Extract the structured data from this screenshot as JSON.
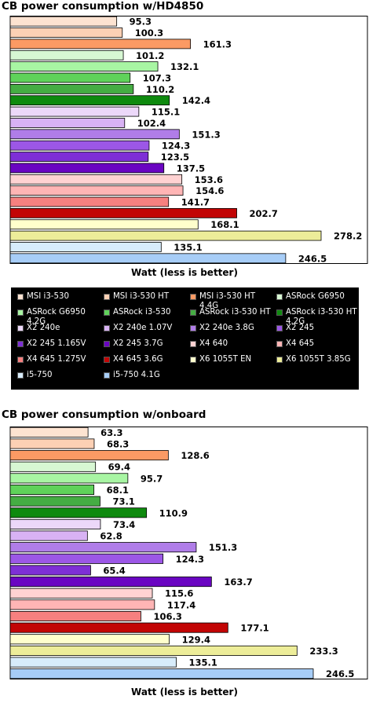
{
  "colors": [
    "#fde3d1",
    "#fcd0b4",
    "#fb9a64",
    "#d7f7d3",
    "#a8f5a3",
    "#5fd25a",
    "#45ad43",
    "#0e8a0e",
    "#ecd8f9",
    "#d8b2f4",
    "#b07de8",
    "#9c57e6",
    "#7e2fd6",
    "#6a05c2",
    "#ffd2d2",
    "#ffb5b5",
    "#f6807f",
    "#c20505",
    "#ffffcc",
    "#eded99",
    "#d7ecfb",
    "#a7cdf7"
  ],
  "legend": {
    "entries": [
      "MSI i3-530",
      "MSI i3-530 HT",
      "MSI i3-530 HT 4.4G",
      "ASRock G6950",
      "ASRock G6950 4.2G",
      "ASRock i3-530",
      "ASRock i3-530 HT",
      "ASRock i3-530 HT 4.2G",
      "X2 240e",
      "X2 240e 1.07V",
      "X2 240e 3.8G",
      "X2 245",
      "X2 245 1.165V",
      "X2 245 3.7G",
      "X4 640",
      "X4 645",
      "X4 645 1.275V",
      "X4 645 3.6G",
      "X6 1055T EN",
      "X6 1055T 3.85G",
      "i5-750",
      "i5-750 4.1G"
    ]
  },
  "chart_data": [
    {
      "type": "bar",
      "orientation": "horizontal",
      "title": "CB power consumption w/HD4850",
      "xlabel": "Watt (less is better)",
      "categories": [
        "MSI i3-530",
        "MSI i3-530 HT",
        "MSI i3-530 HT 4.4G",
        "ASRock G6950",
        "ASRock G6950 4.2G",
        "ASRock i3-530",
        "ASRock i3-530 HT",
        "ASRock i3-530 HT 4.2G",
        "X2 240e",
        "X2 240e 1.07V",
        "X2 240e 3.8G",
        "X2 245",
        "X2 245 1.165V",
        "X2 245 3.7G",
        "X4 640",
        "X4 645",
        "X4 645 1.275V",
        "X4 645 3.6G",
        "X6 1055T EN",
        "X6 1055T 3.85G",
        "i5-750",
        "i5-750 4.1G"
      ],
      "values": [
        95.3,
        100.3,
        161.3,
        101.2,
        132.1,
        107.3,
        110.2,
        142.4,
        115.1,
        102.4,
        151.3,
        124.3,
        123.5,
        137.5,
        153.6,
        154.6,
        141.7,
        202.7,
        168.1,
        278.2,
        135.1,
        246.5
      ],
      "labels": [
        "95.3",
        "100.3",
        "161.3",
        "101.2",
        "132.1",
        "107.3",
        "110.2",
        "142.4",
        "115.1",
        "102.4",
        "151.3",
        "124.3",
        "123.5",
        "137.5",
        "153.6",
        "154.6",
        "141.7",
        "202.7",
        "168.1",
        "278.2",
        "135.1",
        "246.5"
      ],
      "xlim": [
        0,
        278.2
      ]
    },
    {
      "type": "bar",
      "orientation": "horizontal",
      "title": "CB power consumption w/onboard",
      "xlabel": "Watt (less is better)",
      "categories": [
        "MSI i3-530",
        "MSI i3-530 HT",
        "MSI i3-530 HT 4.4G",
        "ASRock G6950",
        "ASRock G6950 4.2G",
        "ASRock i3-530",
        "ASRock i3-530 HT",
        "ASRock i3-530 HT 4.2G",
        "X2 240e",
        "X2 240e 1.07V",
        "X2 240e 3.8G",
        "X2 245",
        "X2 245 1.165V",
        "X2 245 3.7G",
        "X4 640",
        "X4 645",
        "X4 645 1.275V",
        "X4 645 3.6G",
        "X6 1055T EN",
        "X6 1055T 3.85G",
        "i5-750",
        "i5-750 4.1G"
      ],
      "values": [
        63.3,
        68.3,
        128.6,
        69.4,
        95.7,
        68.1,
        73.1,
        110.9,
        73.4,
        62.8,
        151.3,
        124.3,
        65.4,
        163.7,
        115.6,
        117.4,
        106.3,
        177.1,
        129.4,
        233.3,
        135.1,
        246.5
      ],
      "labels": [
        "63.3",
        "68.3",
        "128.6",
        "69.4",
        "95.7",
        "68.1",
        "73.1",
        "110.9",
        "73.4",
        "62.8",
        "151.3",
        "124.3",
        "65.4",
        "163.7",
        "115.6",
        "117.4",
        "106.3",
        "177.1",
        "129.4",
        "233.3",
        "135.1",
        "246.5"
      ],
      "xlim": [
        0,
        246.5
      ]
    }
  ]
}
